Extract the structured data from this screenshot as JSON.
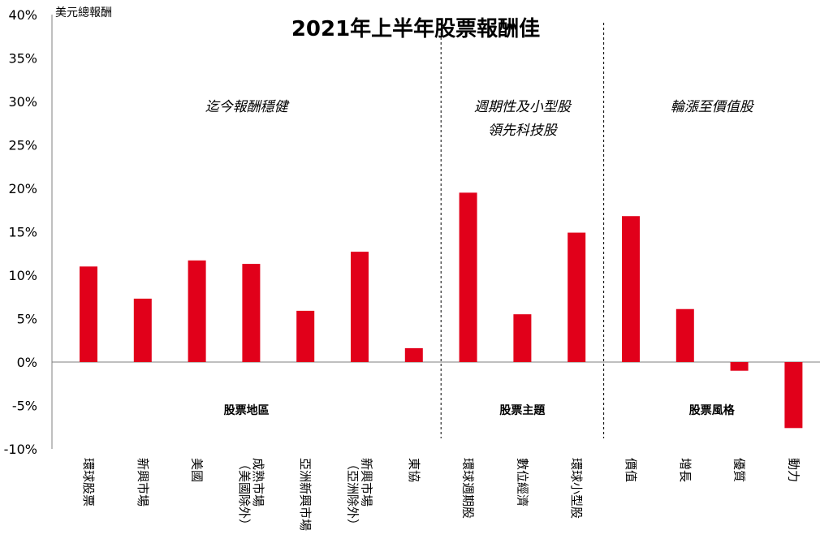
{
  "chart_data": {
    "type": "bar",
    "title": "2021年上半年股票報酬佳",
    "ylabel": "美元總報酬",
    "ylim": [
      -10,
      40
    ],
    "yticks": [
      "40%",
      "35%",
      "30%",
      "25%",
      "20%",
      "15%",
      "10%",
      "5%",
      "0%",
      "-5%",
      "-10%"
    ],
    "categories": [
      [
        "環球股票"
      ],
      [
        "新興市場"
      ],
      [
        "美國"
      ],
      [
        "成熟市場",
        "（美國除外）"
      ],
      [
        "亞洲新興市場"
      ],
      [
        "新興市場",
        "（亞洲除外）"
      ],
      [
        "東協"
      ],
      [
        "環球週期股"
      ],
      [
        "數位經濟"
      ],
      [
        "環球小型股"
      ],
      [
        "價值"
      ],
      [
        "增長"
      ],
      [
        "優質"
      ],
      [
        "動力"
      ]
    ],
    "values": [
      11.0,
      7.3,
      11.7,
      11.3,
      5.9,
      12.7,
      1.6,
      19.5,
      5.5,
      14.9,
      16.8,
      6.1,
      -1.0,
      -7.6
    ],
    "bar_color": "#e1001a",
    "groups": [
      {
        "section_label": "股票地區",
        "header_lines": [
          "迄今報酬穩健"
        ],
        "start": 0,
        "end": 6
      },
      {
        "section_label": "股票主題",
        "header_lines": [
          "週期性及小型股",
          "領先科技股"
        ],
        "start": 7,
        "end": 9
      },
      {
        "section_label": "股票風格",
        "header_lines": [
          "輪漲至價值股"
        ],
        "start": 10,
        "end": 13
      }
    ],
    "grid": false,
    "legend": "none"
  }
}
